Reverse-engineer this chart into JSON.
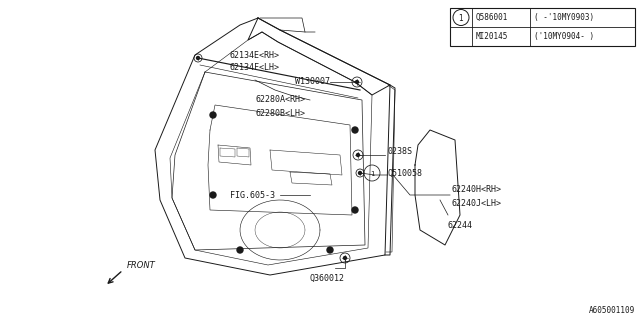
{
  "bg_color": "#ffffff",
  "line_color": "#1a1a1a",
  "fig_width": 6.4,
  "fig_height": 3.2,
  "part_number_footer": "A605001109",
  "table": {
    "rows": [
      {
        "code": "Q586001",
        "desc": "( -'10MY0903)"
      },
      {
        "code": "MI20145",
        "desc": "('10MY0904- )"
      }
    ]
  }
}
